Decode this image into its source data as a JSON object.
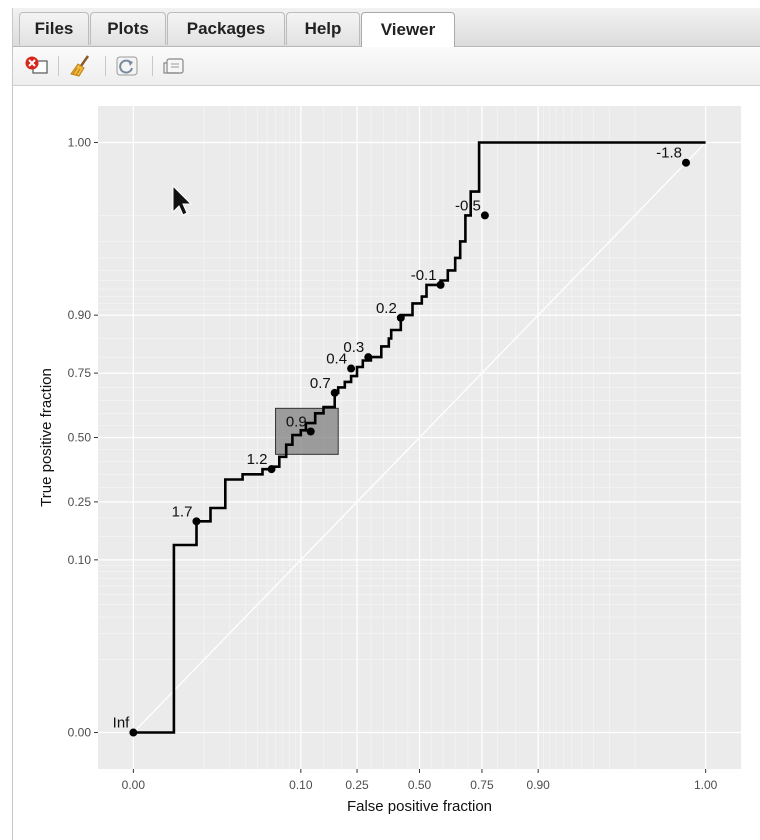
{
  "tabs": [
    {
      "label": "Files"
    },
    {
      "label": "Plots"
    },
    {
      "label": "Packages"
    },
    {
      "label": "Help"
    },
    {
      "label": "Viewer",
      "active": true
    }
  ],
  "toolbar": {
    "icons": [
      "remove-viewer-icon",
      "clear-broom-icon",
      "refresh-icon",
      "export-icon"
    ]
  },
  "colors": {
    "panel_background": "#ebebeb",
    "gridline": "#ffffff",
    "curve": "#000000",
    "highlight_box": "#808080"
  },
  "chart_data": {
    "type": "line",
    "xlabel": "False positive fraction",
    "ylabel": "True positive fraction",
    "xlim": [
      0,
      1
    ],
    "ylim": [
      0,
      1
    ],
    "scale": "probit",
    "x_ticks": [
      "0.00",
      "0.10",
      "0.25",
      "0.50",
      "0.75",
      "0.90",
      "1.00"
    ],
    "y_ticks": [
      "0.00",
      "0.10",
      "0.25",
      "0.50",
      "0.75",
      "0.90",
      "1.00"
    ],
    "grid": true,
    "reference_line": "diagonal",
    "series": [
      {
        "values_fpr": [
          0.0,
          0.0,
          0.004,
          0.004,
          0.008,
          0.008,
          0.012,
          0.012,
          0.018,
          0.018,
          0.028,
          0.028,
          0.045,
          0.045,
          0.055,
          0.055,
          0.065,
          0.065,
          0.075,
          0.075,
          0.085,
          0.085,
          0.1,
          0.1,
          0.11,
          0.11,
          0.13,
          0.13,
          0.15,
          0.15,
          0.18,
          0.18,
          0.19,
          0.19,
          0.21,
          0.21,
          0.23,
          0.23,
          0.25,
          0.25,
          0.27,
          0.27,
          0.3,
          0.3,
          0.34,
          0.34,
          0.37,
          0.37,
          0.38,
          0.38,
          0.42,
          0.42,
          0.47,
          0.47,
          0.51,
          0.51,
          0.53,
          0.53,
          0.59,
          0.59,
          0.62,
          0.62,
          0.65,
          0.65,
          0.67,
          0.67,
          0.69,
          0.69,
          0.71,
          0.71,
          0.74,
          0.74,
          0.76,
          0.995,
          1.0
        ],
        "values_tpr": [
          0.0,
          0.0,
          0.0,
          0.13,
          0.13,
          0.19,
          0.19,
          0.23,
          0.23,
          0.33,
          0.33,
          0.35,
          0.35,
          0.37,
          0.37,
          0.38,
          0.38,
          0.42,
          0.42,
          0.47,
          0.47,
          0.51,
          0.51,
          0.53,
          0.53,
          0.56,
          0.56,
          0.6,
          0.6,
          0.625,
          0.625,
          0.68,
          0.68,
          0.7,
          0.7,
          0.72,
          0.72,
          0.74,
          0.74,
          0.77,
          0.77,
          0.79,
          0.79,
          0.8,
          0.8,
          0.83,
          0.83,
          0.85,
          0.85,
          0.87,
          0.87,
          0.9,
          0.9,
          0.92,
          0.92,
          0.93,
          0.93,
          0.945,
          0.945,
          0.95,
          0.95,
          0.96,
          0.96,
          0.97,
          0.97,
          0.98,
          0.98,
          0.99,
          0.99,
          0.995,
          0.995,
          1.0,
          1.0,
          1.0,
          1.0
        ]
      }
    ],
    "cutoff_points": [
      {
        "label": "Inf",
        "fpr": 0.001,
        "tpr": 0.001
      },
      {
        "label": "1.7",
        "fpr": 0.008,
        "tpr": 0.19
      },
      {
        "label": "1.2",
        "fpr": 0.055,
        "tpr": 0.37
      },
      {
        "label": "0.9",
        "fpr": 0.12,
        "tpr": 0.525
      },
      {
        "label": "0.7",
        "fpr": 0.18,
        "tpr": 0.68
      },
      {
        "label": "0.4",
        "fpr": 0.23,
        "tpr": 0.765
      },
      {
        "label": "0.3",
        "fpr": 0.29,
        "tpr": 0.8
      },
      {
        "label": "0.2",
        "fpr": 0.42,
        "tpr": 0.895
      },
      {
        "label": "-0.1",
        "fpr": 0.59,
        "tpr": 0.945
      },
      {
        "label": "-0.5",
        "fpr": 0.76,
        "tpr": 0.99
      },
      {
        "label": "-1.8",
        "fpr": 0.998,
        "tpr": 0.998
      }
    ],
    "highlight_box": {
      "fpr": [
        0.06,
        0.19
      ],
      "tpr": [
        0.43,
        0.62
      ]
    }
  }
}
